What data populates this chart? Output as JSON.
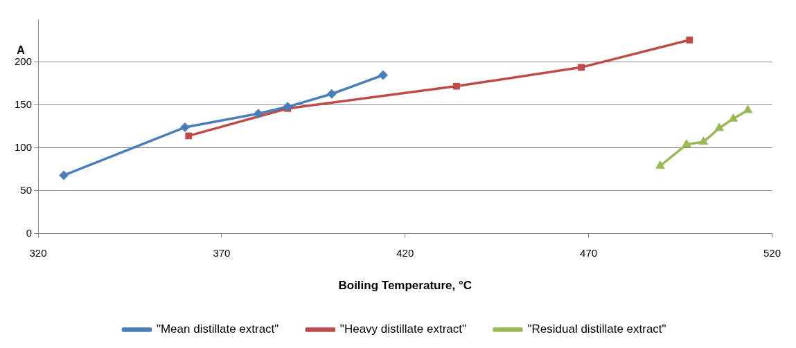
{
  "chart_data": {
    "type": "line",
    "xlabel": "Boiling Temperature, °C",
    "ylabel": "A",
    "xlim": [
      320,
      520
    ],
    "xticks": [
      320,
      370,
      420,
      470,
      520
    ],
    "ylim": [
      0,
      250
    ],
    "yticks": [
      0,
      50,
      100,
      150,
      200
    ],
    "grid": "y",
    "legend": "bottom",
    "line_style": "solid",
    "series": [
      {
        "name": "\"Mean distillate extract\"",
        "color": "#4a7ebb",
        "marker": "diamond",
        "x": [
          327,
          360,
          380,
          388,
          400,
          414
        ],
        "values": [
          68,
          124,
          140,
          148,
          163,
          185
        ]
      },
      {
        "name": "\"Heavy distillate extract\"",
        "color": "#be4b48",
        "marker": "square",
        "x": [
          361,
          388,
          434,
          468,
          497.5
        ],
        "values": [
          114,
          146,
          172,
          194,
          226
        ]
      },
      {
        "name": "\"Residual distillate extract\"",
        "color": "#98b954",
        "marker": "triangle",
        "x": [
          489.5,
          496.7,
          501.3,
          505.6,
          509.4,
          513.4
        ],
        "values": [
          79,
          104,
          107,
          123,
          134,
          144
        ]
      }
    ]
  }
}
